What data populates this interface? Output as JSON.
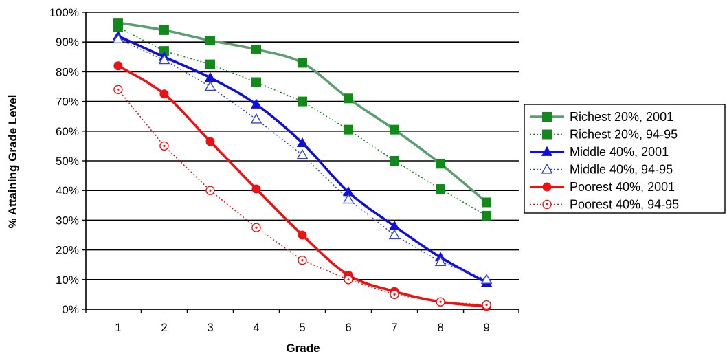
{
  "chart_data": {
    "type": "line",
    "xlabel": "Grade",
    "ylabel": "% Attaining Grade Level",
    "x": [
      1,
      2,
      3,
      4,
      5,
      6,
      7,
      8,
      9
    ],
    "xlim": [
      0.3,
      9.7
    ],
    "ylim": [
      0,
      100
    ],
    "yticks": [
      "0%",
      "10%",
      "20%",
      "30%",
      "40%",
      "50%",
      "60%",
      "70%",
      "80%",
      "90%",
      "100%"
    ],
    "xticks": [
      "1",
      "2",
      "3",
      "4",
      "5",
      "6",
      "7",
      "8",
      "9"
    ],
    "grid": "horizontal",
    "legend_position": "right",
    "series": [
      {
        "name": "Richest 20%, 2001",
        "values": [
          96.5,
          94,
          90.5,
          87.5,
          83,
          71,
          60.5,
          49,
          36
        ],
        "color": "#5a9e72",
        "marker_color": "#118a1a",
        "marker": "square",
        "dashed": false,
        "filled": true
      },
      {
        "name": "Richest 20%, 94-95",
        "values": [
          95,
          87,
          82.5,
          76.5,
          70,
          60.5,
          50,
          40.5,
          31.5
        ],
        "color": "#118a1a",
        "marker_color": "#118a1a",
        "marker": "square",
        "dashed": true,
        "filled": true
      },
      {
        "name": "Middle 40%, 2001",
        "values": [
          92,
          85,
          78,
          69,
          56,
          39.5,
          28,
          17.5,
          9
        ],
        "color": "#1010d8",
        "marker_color": "#1010d8",
        "marker": "triangle",
        "dashed": false,
        "filled": true
      },
      {
        "name": "Middle 40%, 94-95",
        "values": [
          91,
          84,
          75,
          64,
          52,
          37,
          25,
          16,
          10
        ],
        "color": "#3344cc",
        "marker_color": "#3344cc",
        "marker": "triangle",
        "dashed": true,
        "filled": false
      },
      {
        "name": "Poorest 40%, 2001",
        "values": [
          82,
          72.5,
          56.5,
          40.5,
          25,
          11.5,
          6,
          2.5,
          1
        ],
        "color": "#ee1111",
        "marker_color": "#ee1111",
        "marker": "circle",
        "dashed": false,
        "filled": true
      },
      {
        "name": "Poorest 40%, 94-95",
        "values": [
          74,
          55,
          40,
          27.5,
          16.5,
          10,
          5,
          2.5,
          1.5
        ],
        "color": "#ee1111",
        "marker_color": "#ee1111",
        "marker": "circle",
        "dashed": true,
        "filled": false
      }
    ]
  }
}
